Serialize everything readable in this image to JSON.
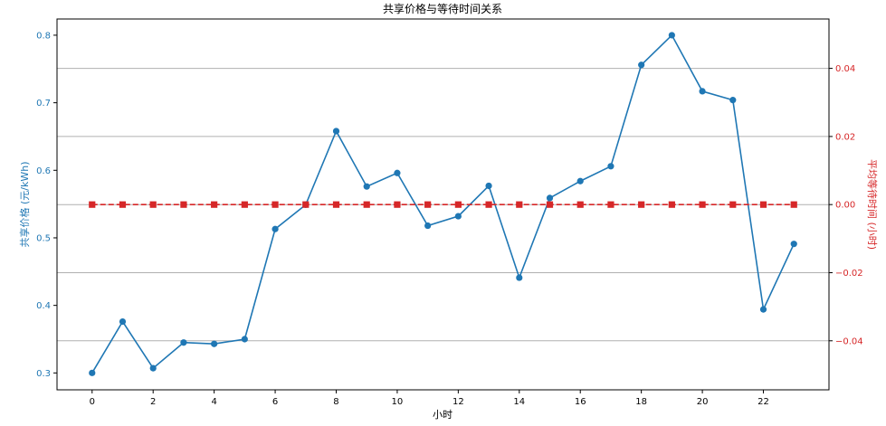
{
  "chart_data": {
    "type": "line",
    "title": "共享价格与等待时间关系",
    "xlabel": "小时",
    "ylabel_left": "共享价格 (元/kWh)",
    "ylabel_right": "平均等待时间 (小时)",
    "x": [
      0,
      1,
      2,
      3,
      4,
      5,
      6,
      7,
      8,
      9,
      10,
      11,
      12,
      13,
      14,
      15,
      16,
      17,
      18,
      19,
      20,
      21,
      22,
      23
    ],
    "xlim": [
      -1.15,
      24.15
    ],
    "x_ticks": [
      "0",
      "2",
      "4",
      "6",
      "8",
      "10",
      "12",
      "14",
      "16",
      "18",
      "20",
      "22"
    ],
    "ylim_left": [
      0.275,
      0.824
    ],
    "y_left_ticks": [
      "0.3",
      "0.4",
      "0.5",
      "0.6",
      "0.7",
      "0.8"
    ],
    "ylim_right": [
      -0.0544,
      0.0545
    ],
    "y_right_ticks": [
      "−0.04",
      "−0.02",
      "0.00",
      "0.02",
      "0.04"
    ],
    "grid": "horizontal lines at right-axis ticks",
    "series": [
      {
        "axis": "left",
        "color": "#1f77b4",
        "marker": "circle",
        "line": "solid",
        "values": [
          0.3,
          0.376,
          0.307,
          0.345,
          0.343,
          0.35,
          0.513,
          0.549,
          0.658,
          0.576,
          0.596,
          0.518,
          0.532,
          0.577,
          0.441,
          0.559,
          0.584,
          0.606,
          0.756,
          0.8,
          0.717,
          0.704,
          0.394,
          0.491
        ]
      },
      {
        "axis": "right",
        "color": "#d62728",
        "marker": "square",
        "line": "dashed",
        "values": [
          0,
          0,
          0,
          0,
          0,
          0,
          0,
          0,
          0,
          0,
          0,
          0,
          0,
          0,
          0,
          0,
          0,
          0,
          0,
          0,
          0,
          0,
          0,
          0
        ]
      }
    ]
  }
}
